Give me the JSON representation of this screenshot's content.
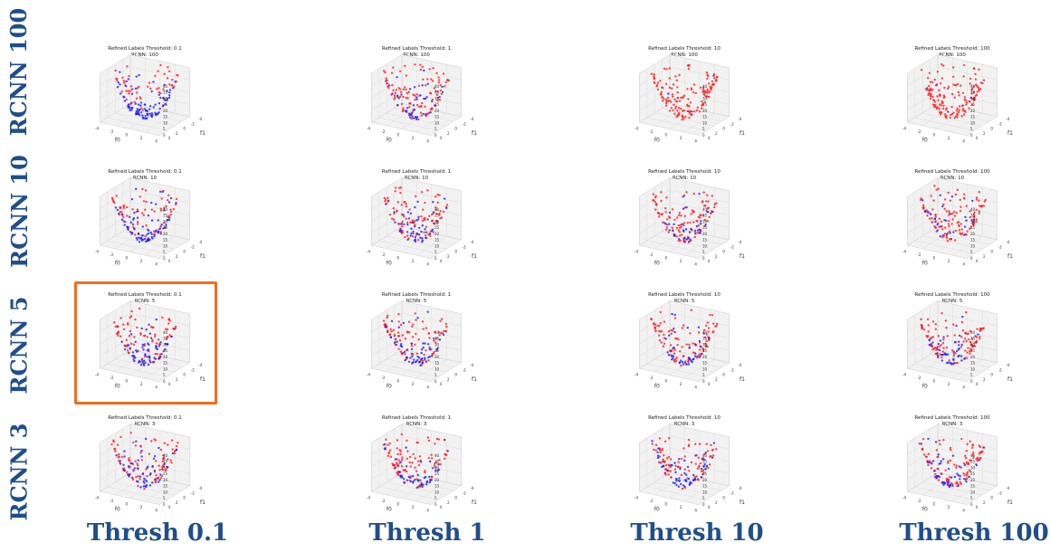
{
  "row_labels": [
    "RCNN 100",
    "RCNN 10",
    "RCNN 5",
    "RCNN 3"
  ],
  "col_labels": [
    "Thresh 0.1",
    "Thresh 1",
    "Thresh 10",
    "Thresh 100"
  ],
  "highlight": {
    "row": 2,
    "col": 0,
    "color": "#f26c21"
  },
  "colors": {
    "label": "#1f4e8c",
    "positive": "#ff1a1a",
    "negative": "#1a1aff"
  },
  "chart_data": {
    "type": "scatter",
    "subtype": "3d",
    "layout": "grid 4x4",
    "rows": [
      "RCNN: 100",
      "RCNN: 10",
      "RCNN: 5",
      "RCNN: 3"
    ],
    "cols": [
      "Refined Labels Threshold: 0.1",
      "Refined Labels Threshold: 1",
      "Refined Labels Threshold: 10",
      "Refined Labels Threshold: 100"
    ],
    "xlabel": "f0",
    "ylabel": "f1",
    "x_ticks": [
      "-4",
      "-2",
      "0",
      "2",
      "4"
    ],
    "y_ticks": [
      "-4",
      "-2",
      "0",
      "2",
      "4"
    ],
    "z_ticks": [
      "0",
      "5",
      "10",
      "15",
      "20",
      "25",
      "30",
      "35",
      "40"
    ],
    "panels": [
      {
        "title": "Refined Labels Threshold: 0.1",
        "subtitle": "RCNN: 100",
        "blue_fraction": 0.55
      },
      {
        "title": "Refined Labels Threshold: 1",
        "subtitle": "RCNN: 100",
        "blue_fraction": 0.28
      },
      {
        "title": "Refined Labels Threshold: 10",
        "subtitle": "RCNN: 100",
        "blue_fraction": 0.03
      },
      {
        "title": "Refined Labels Threshold: 100",
        "subtitle": "RCNN: 100",
        "blue_fraction": 0.02
      },
      {
        "title": "Refined Labels Threshold: 0.1",
        "subtitle": "RCNN: 10",
        "blue_fraction": 0.5
      },
      {
        "title": "Refined Labels Threshold: 1",
        "subtitle": "RCNN: 10",
        "blue_fraction": 0.3
      },
      {
        "title": "Refined Labels Threshold: 10",
        "subtitle": "RCNN: 10",
        "blue_fraction": 0.25
      },
      {
        "title": "Refined Labels Threshold: 100",
        "subtitle": "RCNN: 10",
        "blue_fraction": 0.22
      },
      {
        "title": "Refined Labels Threshold: 0.1",
        "subtitle": "RCNN: 5",
        "blue_fraction": 0.4
      },
      {
        "title": "Refined Labels Threshold: 1",
        "subtitle": "RCNN: 5",
        "blue_fraction": 0.32
      },
      {
        "title": "Refined Labels Threshold: 10",
        "subtitle": "RCNN: 5",
        "blue_fraction": 0.3
      },
      {
        "title": "Refined Labels Threshold: 100",
        "subtitle": "RCNN: 5",
        "blue_fraction": 0.28
      },
      {
        "title": "Refined Labels Threshold: 0.1",
        "subtitle": "RCNN: 3",
        "blue_fraction": 0.4
      },
      {
        "title": "Refined Labels Threshold: 1",
        "subtitle": "RCNN: 3",
        "blue_fraction": 0.33
      },
      {
        "title": "Refined Labels Threshold: 10",
        "subtitle": "RCNN: 3",
        "blue_fraction": 0.3
      },
      {
        "title": "Refined Labels Threshold: 100",
        "subtitle": "RCNN: 3",
        "blue_fraction": 0.3
      }
    ]
  }
}
